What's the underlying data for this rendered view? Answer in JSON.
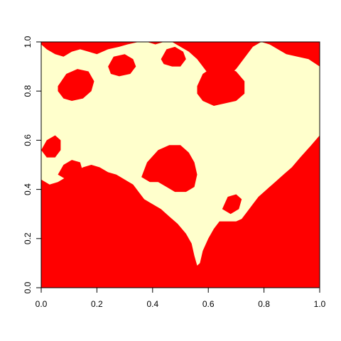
{
  "chart_data": {
    "type": "heatmap",
    "title": "",
    "xlabel": "",
    "ylabel": "",
    "xlim": [
      0,
      1
    ],
    "ylim": [
      0,
      1
    ],
    "x_ticks": [
      "0.0",
      "0.2",
      "0.4",
      "0.6",
      "0.8",
      "1.0"
    ],
    "y_ticks": [
      "0.0",
      "0.2",
      "0.4",
      "0.6",
      "0.8",
      "1.0"
    ],
    "x_tick_values": [
      0,
      0.2,
      0.4,
      0.6,
      0.8,
      1.0
    ],
    "y_tick_values": [
      0,
      0.2,
      0.4,
      0.6,
      0.8,
      1.0
    ],
    "grid": false,
    "legend": "none",
    "colors": {
      "outside": "#ff0000",
      "inside": "#ffffcc"
    },
    "regions": {
      "inside_polygons": [
        [
          [
            0,
            0.99
          ],
          [
            0.02,
            0.97
          ],
          [
            0.05,
            0.95
          ],
          [
            0.08,
            0.94
          ],
          [
            0.11,
            0.96
          ],
          [
            0.14,
            0.97
          ],
          [
            0.17,
            0.96
          ],
          [
            0.2,
            0.95
          ],
          [
            0.24,
            0.97
          ],
          [
            0.28,
            0.98
          ],
          [
            0.31,
            0.99
          ],
          [
            0.35,
            1.0
          ],
          [
            0.38,
            1.0
          ],
          [
            0.41,
            0.99
          ],
          [
            0.44,
            1.0
          ],
          [
            0.47,
            1.0
          ],
          [
            0.5,
            0.98
          ],
          [
            0.53,
            0.96
          ],
          [
            0.56,
            0.93
          ],
          [
            0.58,
            0.9
          ],
          [
            0.6,
            0.87
          ],
          [
            0.62,
            0.85
          ],
          [
            0.64,
            0.84
          ],
          [
            0.67,
            0.86
          ],
          [
            0.7,
            0.89
          ],
          [
            0.72,
            0.92
          ],
          [
            0.74,
            0.95
          ],
          [
            0.76,
            0.98
          ],
          [
            0.79,
            1.0
          ],
          [
            0.82,
            0.99
          ],
          [
            0.85,
            0.97
          ],
          [
            0.88,
            0.95
          ],
          [
            0.92,
            0.94
          ],
          [
            0.96,
            0.93
          ],
          [
            1.0,
            0.9
          ],
          [
            1.0,
            0.62
          ],
          [
            0.97,
            0.58
          ],
          [
            0.93,
            0.53
          ],
          [
            0.9,
            0.49
          ],
          [
            0.87,
            0.46
          ],
          [
            0.84,
            0.43
          ],
          [
            0.82,
            0.41
          ],
          [
            0.8,
            0.39
          ],
          [
            0.78,
            0.37
          ],
          [
            0.76,
            0.34
          ],
          [
            0.74,
            0.31
          ],
          [
            0.72,
            0.28
          ],
          [
            0.7,
            0.27
          ],
          [
            0.67,
            0.27
          ],
          [
            0.64,
            0.27
          ],
          [
            0.62,
            0.24
          ],
          [
            0.6,
            0.2
          ],
          [
            0.58,
            0.15
          ],
          [
            0.57,
            0.1
          ],
          [
            0.56,
            0.09
          ],
          [
            0.55,
            0.13
          ],
          [
            0.54,
            0.18
          ],
          [
            0.52,
            0.22
          ],
          [
            0.49,
            0.26
          ],
          [
            0.46,
            0.29
          ],
          [
            0.43,
            0.32
          ],
          [
            0.4,
            0.34
          ],
          [
            0.37,
            0.36
          ],
          [
            0.35,
            0.39
          ],
          [
            0.33,
            0.42
          ],
          [
            0.3,
            0.44
          ],
          [
            0.27,
            0.46
          ],
          [
            0.24,
            0.47
          ],
          [
            0.21,
            0.49
          ],
          [
            0.18,
            0.5
          ],
          [
            0.15,
            0.49
          ],
          [
            0.12,
            0.47
          ],
          [
            0.09,
            0.45
          ],
          [
            0.06,
            0.43
          ],
          [
            0.03,
            0.42
          ],
          [
            0,
            0.44
          ]
        ]
      ],
      "outside_islands": [
        [
          [
            0.06,
            0.82
          ],
          [
            0.09,
            0.87
          ],
          [
            0.13,
            0.89
          ],
          [
            0.17,
            0.88
          ],
          [
            0.19,
            0.84
          ],
          [
            0.18,
            0.8
          ],
          [
            0.15,
            0.77
          ],
          [
            0.11,
            0.76
          ],
          [
            0.08,
            0.77
          ],
          [
            0.06,
            0.8
          ]
        ],
        [
          [
            0.24,
            0.9
          ],
          [
            0.26,
            0.94
          ],
          [
            0.3,
            0.95
          ],
          [
            0.33,
            0.93
          ],
          [
            0.34,
            0.9
          ],
          [
            0.32,
            0.87
          ],
          [
            0.28,
            0.86
          ],
          [
            0.25,
            0.87
          ]
        ],
        [
          [
            0.43,
            0.93
          ],
          [
            0.45,
            0.97
          ],
          [
            0.48,
            0.98
          ],
          [
            0.51,
            0.96
          ],
          [
            0.52,
            0.93
          ],
          [
            0.5,
            0.9
          ],
          [
            0.47,
            0.9
          ],
          [
            0.44,
            0.91
          ]
        ],
        [
          [
            0.56,
            0.82
          ],
          [
            0.58,
            0.87
          ],
          [
            0.62,
            0.9
          ],
          [
            0.66,
            0.9
          ],
          [
            0.7,
            0.88
          ],
          [
            0.73,
            0.84
          ],
          [
            0.73,
            0.79
          ],
          [
            0.7,
            0.76
          ],
          [
            0.66,
            0.75
          ],
          [
            0.62,
            0.74
          ],
          [
            0.58,
            0.76
          ],
          [
            0.56,
            0.79
          ]
        ],
        [
          [
            0.36,
            0.45
          ],
          [
            0.38,
            0.51
          ],
          [
            0.42,
            0.56
          ],
          [
            0.46,
            0.58
          ],
          [
            0.5,
            0.58
          ],
          [
            0.53,
            0.55
          ],
          [
            0.55,
            0.51
          ],
          [
            0.56,
            0.46
          ],
          [
            0.55,
            0.41
          ],
          [
            0.52,
            0.39
          ],
          [
            0.48,
            0.39
          ],
          [
            0.45,
            0.41
          ],
          [
            0.42,
            0.43
          ],
          [
            0.39,
            0.43
          ]
        ],
        [
          [
            0.0,
            0.56
          ],
          [
            0.02,
            0.6
          ],
          [
            0.05,
            0.62
          ],
          [
            0.07,
            0.6
          ],
          [
            0.07,
            0.56
          ],
          [
            0.05,
            0.53
          ],
          [
            0.02,
            0.53
          ]
        ],
        [
          [
            0.92,
            0.48
          ],
          [
            0.94,
            0.53
          ],
          [
            0.97,
            0.55
          ],
          [
            1.0,
            0.55
          ],
          [
            1.0,
            0.43
          ],
          [
            0.97,
            0.43
          ],
          [
            0.94,
            0.44
          ]
        ],
        [
          [
            0.06,
            0.46
          ],
          [
            0.08,
            0.5
          ],
          [
            0.11,
            0.52
          ],
          [
            0.14,
            0.51
          ],
          [
            0.15,
            0.47
          ],
          [
            0.12,
            0.45
          ],
          [
            0.09,
            0.44
          ]
        ],
        [
          [
            0.65,
            0.32
          ],
          [
            0.67,
            0.37
          ],
          [
            0.7,
            0.38
          ],
          [
            0.72,
            0.36
          ],
          [
            0.71,
            0.32
          ],
          [
            0.68,
            0.3
          ]
        ]
      ]
    }
  }
}
